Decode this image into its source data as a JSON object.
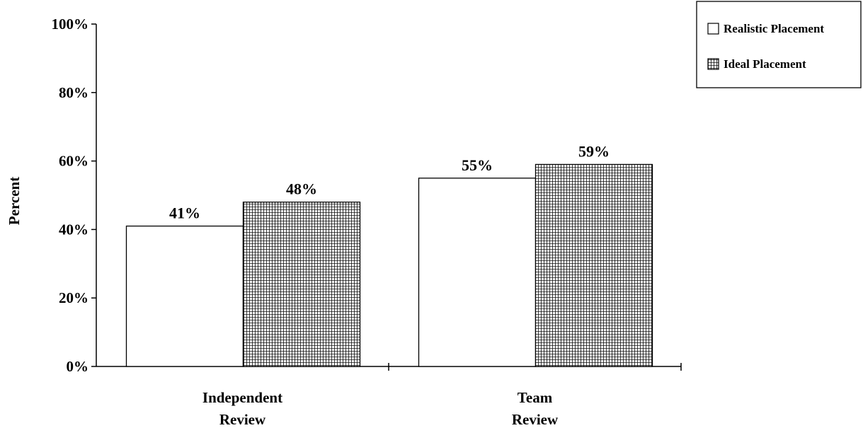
{
  "chart_data": {
    "type": "bar",
    "title": "",
    "xlabel": "",
    "ylabel": "Percent",
    "ylim": [
      0,
      100
    ],
    "yticks": [
      "0%",
      "20%",
      "40%",
      "60%",
      "80%",
      "100%"
    ],
    "categories": [
      [
        "Independent",
        "Review"
      ],
      [
        "Team",
        "Review"
      ]
    ],
    "series": [
      {
        "name": "Realistic Placement",
        "values": [
          41,
          55
        ],
        "labels": [
          "41%",
          "55%"
        ],
        "fill": "#ffffff",
        "pattern": "none"
      },
      {
        "name": "Ideal Placement",
        "values": [
          48,
          59
        ],
        "labels": [
          "48%",
          "59%"
        ],
        "fill": "#ffffff",
        "pattern": "grid"
      }
    ],
    "grid": false,
    "legend_position": "top-right"
  }
}
